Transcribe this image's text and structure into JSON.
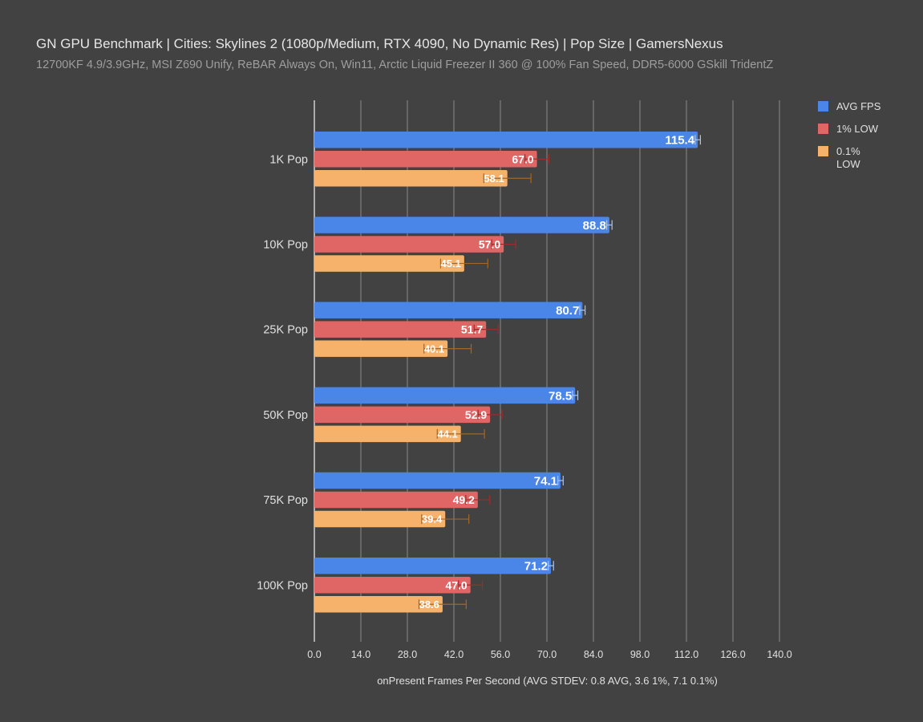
{
  "header": {
    "title": "GN GPU Benchmark | Cities: Skylines 2 (1080p/Medium, RTX 4090, No Dynamic Res) | Pop Size | GamersNexus",
    "subtitle": "12700KF 4.9/3.9GHz, MSI Z690 Unify, ReBAR Always On, Win11, Arctic Liquid Freezer II 360 @ 100% Fan Speed, DDR5-6000 GSkill TridentZ"
  },
  "chart_data": {
    "type": "bar",
    "orientation": "horizontal",
    "title": "GN GPU Benchmark | Cities: Skylines 2 (1080p/Medium, RTX 4090, No Dynamic Res) | Pop Size | GamersNexus",
    "subtitle": "12700KF 4.9/3.9GHz, MSI Z690 Unify, ReBAR Always On, Win11, Arctic Liquid Freezer II 360 @ 100% Fan Speed, DDR5-6000 GSkill TridentZ",
    "xlabel": "onPresent Frames Per Second (AVG STDEV: 0.8 AVG, 3.6 1%, 7.1 0.1%)",
    "ylabel": "",
    "categories": [
      "1K Pop",
      "10K Pop",
      "25K Pop",
      "50K Pop",
      "75K Pop",
      "100K Pop"
    ],
    "series": [
      {
        "name": "AVG FPS",
        "color": "#4a86e8",
        "values": [
          115.4,
          88.8,
          80.7,
          78.5,
          74.1,
          71.2
        ],
        "error": 0.8,
        "error_color": "#a9c4ef"
      },
      {
        "name": "1% LOW",
        "color": "#e06666",
        "values": [
          67.0,
          57.0,
          51.7,
          52.9,
          49.2,
          47.0
        ],
        "error": 3.6,
        "error_color": "#9e2b2b"
      },
      {
        "name": "0.1% LOW",
        "color": "#f6b26b",
        "values": [
          58.1,
          45.1,
          40.1,
          44.1,
          39.4,
          38.6
        ],
        "error": 7.1,
        "error_color": "#a0672a"
      }
    ],
    "xlim": [
      0,
      140
    ],
    "xticks": [
      "0.0",
      "14.0",
      "28.0",
      "42.0",
      "56.0",
      "70.0",
      "84.0",
      "98.0",
      "112.0",
      "126.0",
      "140.0"
    ],
    "grid": true,
    "legend_position": "right"
  }
}
